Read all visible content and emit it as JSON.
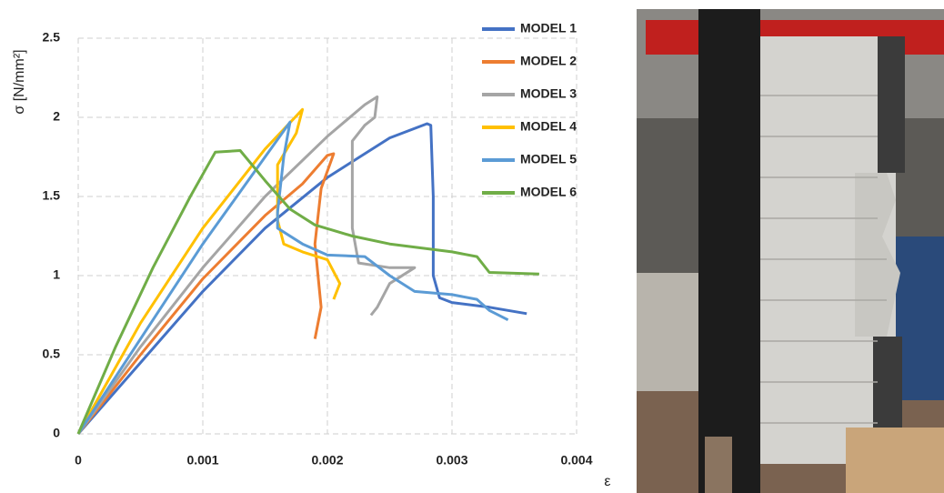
{
  "chart_data": {
    "type": "line",
    "y_label": "σ [N/mm²]",
    "x_label": "ε",
    "xlim": [
      0,
      0.004
    ],
    "ylim": [
      0,
      2.5
    ],
    "xticks": [
      0,
      0.001,
      0.002,
      0.003,
      0.004
    ],
    "yticks": [
      0,
      0.5,
      1,
      1.5,
      2,
      2.5
    ],
    "grid": true,
    "legend": "top-right",
    "series": [
      {
        "name": "MODEL 1",
        "color": "#4472C4",
        "x": [
          0,
          0.0005,
          0.001,
          0.0015,
          0.002,
          0.0025,
          0.0028,
          0.00283,
          0.00285,
          0.00285,
          0.0029,
          0.003,
          0.0033,
          0.0036
        ],
        "values": [
          0,
          0.45,
          0.9,
          1.3,
          1.62,
          1.87,
          1.96,
          1.95,
          1.5,
          1.0,
          0.86,
          0.83,
          0.8,
          0.76
        ]
      },
      {
        "name": "MODEL 2",
        "color": "#ED7D31",
        "x": [
          0,
          0.0005,
          0.001,
          0.0015,
          0.0018,
          0.002,
          0.00205,
          0.00195,
          0.0019,
          0.00195,
          0.0019
        ],
        "values": [
          0,
          0.5,
          0.98,
          1.38,
          1.58,
          1.76,
          1.77,
          1.55,
          1.2,
          0.8,
          0.6
        ]
      },
      {
        "name": "MODEL 3",
        "color": "#A5A5A5",
        "x": [
          0,
          0.0005,
          0.001,
          0.0015,
          0.002,
          0.0023,
          0.0024,
          0.00238,
          0.0023,
          0.0022,
          0.0022,
          0.00225,
          0.0025,
          0.0027,
          0.0025,
          0.0024,
          0.00235
        ],
        "values": [
          0,
          0.55,
          1.05,
          1.5,
          1.88,
          2.08,
          2.13,
          2.0,
          1.95,
          1.85,
          1.3,
          1.08,
          1.05,
          1.05,
          0.95,
          0.8,
          0.75
        ]
      },
      {
        "name": "MODEL 4",
        "color": "#FFC000",
        "x": [
          0,
          0.0005,
          0.001,
          0.0015,
          0.0018,
          0.00175,
          0.0016,
          0.0016,
          0.00165,
          0.0018,
          0.002,
          0.0021,
          0.00205
        ],
        "values": [
          0,
          0.7,
          1.3,
          1.8,
          2.05,
          1.9,
          1.7,
          1.35,
          1.2,
          1.15,
          1.1,
          0.95,
          0.85
        ]
      },
      {
        "name": "MODEL 5",
        "color": "#5B9BD5",
        "x": [
          0,
          0.0005,
          0.001,
          0.0015,
          0.0017,
          0.00165,
          0.0016,
          0.0016,
          0.0018,
          0.002,
          0.0023,
          0.0025,
          0.0027,
          0.003,
          0.0032,
          0.0033,
          0.00345
        ],
        "values": [
          0,
          0.6,
          1.2,
          1.75,
          1.97,
          1.75,
          1.4,
          1.3,
          1.2,
          1.13,
          1.12,
          1.0,
          0.9,
          0.88,
          0.85,
          0.78,
          0.72
        ]
      },
      {
        "name": "MODEL 6",
        "color": "#70AD47",
        "x": [
          0,
          0.0003,
          0.0006,
          0.0009,
          0.0011,
          0.0013,
          0.0015,
          0.0017,
          0.0019,
          0.0022,
          0.0025,
          0.003,
          0.0032,
          0.0033,
          0.0037
        ],
        "values": [
          0,
          0.55,
          1.05,
          1.5,
          1.78,
          1.79,
          1.6,
          1.42,
          1.32,
          1.25,
          1.2,
          1.15,
          1.12,
          1.02,
          1.01
        ]
      }
    ]
  }
}
